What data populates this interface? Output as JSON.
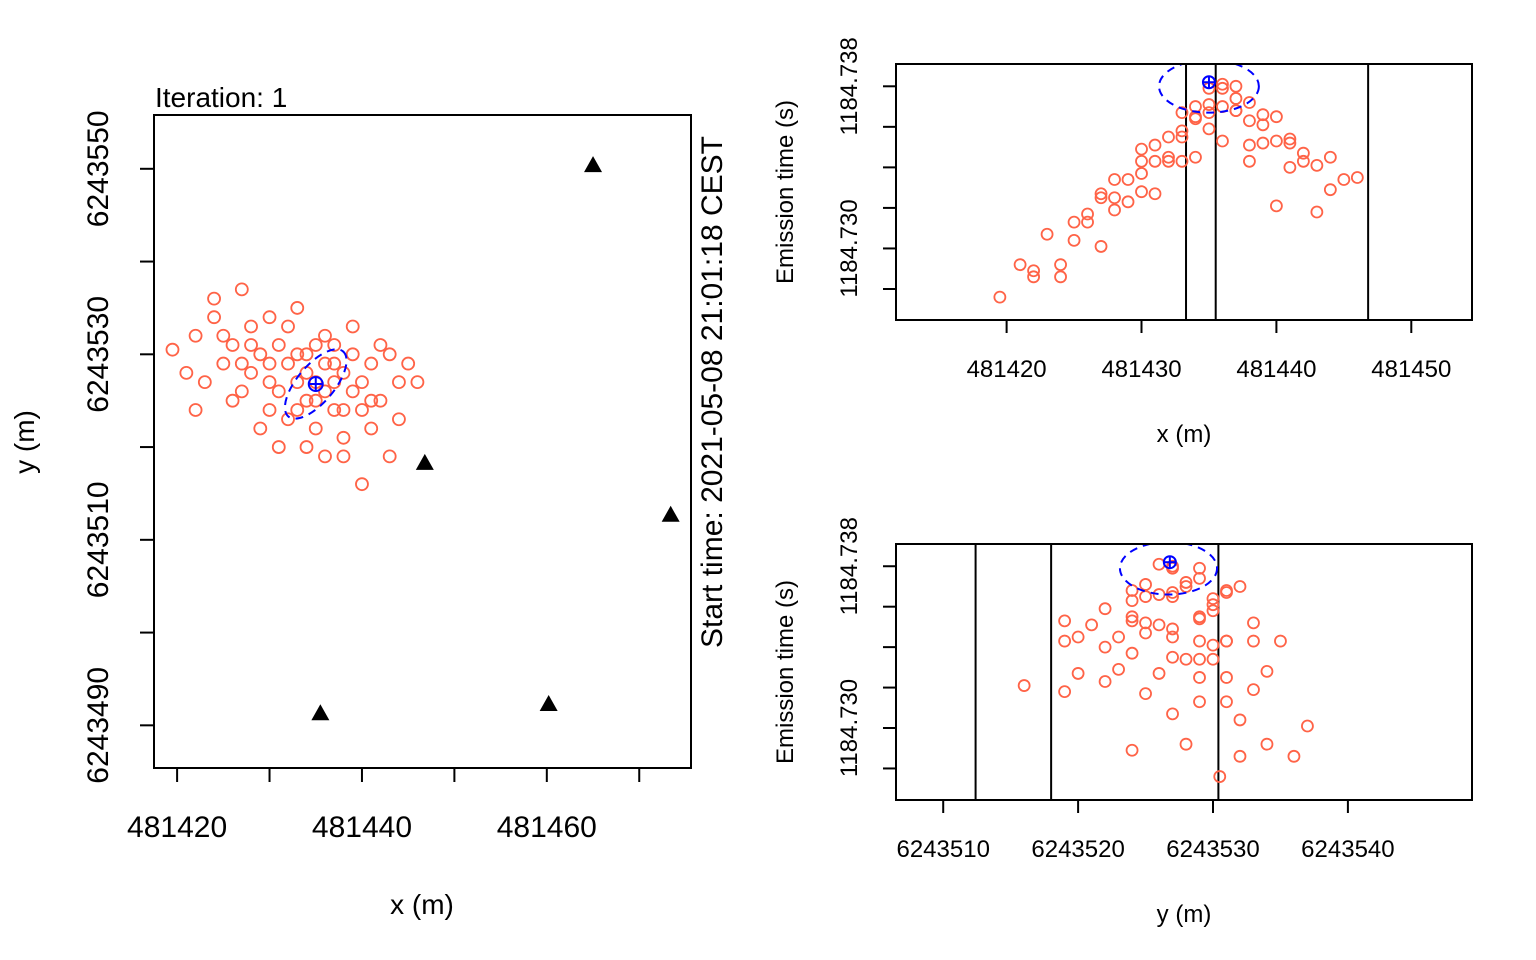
{
  "colors": {
    "points": "#FF6347",
    "estimate": "#0000FF",
    "receivers": "#000000",
    "lines": "#000000"
  },
  "points_xyt": [
    [
      481419.5,
      6243530.5,
      1184.7276
    ],
    [
      481422,
      6243532,
      1184.7286
    ],
    [
      481424,
      6243534,
      1184.7292
    ],
    [
      481423,
      6243527,
      1184.7307
    ],
    [
      481425,
      6243529,
      1184.7313
    ],
    [
      481426,
      6243531,
      1184.7313
    ],
    [
      481427,
      6243526,
      1184.7327
    ],
    [
      481428,
      6243533,
      1184.7319
    ],
    [
      481428,
      6243528,
      1184.7334
    ],
    [
      481429,
      6243530,
      1184.7334
    ],
    [
      481430,
      6243524,
      1184.7337
    ],
    [
      481430,
      6243527,
      1184.7349
    ],
    [
      481431,
      6243531,
      1184.7343
    ],
    [
      481431,
      6243526,
      1184.7351
    ],
    [
      481432,
      6243529,
      1184.7355
    ],
    [
      481432,
      6243523,
      1184.7345
    ],
    [
      481433,
      6243527,
      1184.7367
    ],
    [
      481433,
      6243530,
      1184.7358
    ],
    [
      481434,
      6243525,
      1184.7365
    ],
    [
      481434,
      6243528,
      1184.737
    ],
    [
      481435,
      6243527,
      1184.7379
    ],
    [
      481435,
      6243522,
      1184.7359
    ],
    [
      481436,
      6243526,
      1184.7381
    ],
    [
      481436,
      6243529,
      1184.7379
    ],
    [
      481437,
      6243527,
      1184.738
    ],
    [
      481437,
      6243524,
      1184.7368
    ],
    [
      481438,
      6243528,
      1184.7372
    ],
    [
      481438,
      6243521,
      1184.7351
    ],
    [
      481439,
      6243526,
      1184.7366
    ],
    [
      481439,
      6243530,
      1184.7361
    ],
    [
      481440,
      6243524,
      1184.7353
    ],
    [
      481440,
      6243527,
      1184.7365
    ],
    [
      481441,
      6243522,
      1184.734
    ],
    [
      481441,
      6243529,
      1184.7354
    ],
    [
      481442,
      6243525,
      1184.7347
    ],
    [
      481443,
      6243530,
      1184.7341
    ],
    [
      481444,
      6243527,
      1184.7345
    ],
    [
      481444,
      6243523,
      1184.7329
    ],
    [
      481446,
      6243527,
      1184.7335
    ],
    [
      481440,
      6243516,
      1184.7321
    ],
    [
      481438,
      6243519,
      1184.7343
    ],
    [
      481434,
      6243520,
      1184.7345
    ],
    [
      481433,
      6243535,
      1184.7343
    ],
    [
      481427,
      6243537,
      1184.7301
    ],
    [
      481424,
      6243536,
      1184.7286
    ],
    [
      481421,
      6243528,
      1184.7292
    ],
    [
      481426,
      6243525,
      1184.7317
    ],
    [
      481429,
      6243522,
      1184.7323
    ],
    [
      481431,
      6243520,
      1184.7327
    ],
    [
      481435,
      6243531,
      1184.7367
    ],
    [
      481436,
      6243532,
      1184.737
    ],
    [
      481432,
      6243533,
      1184.7343
    ],
    [
      481430,
      6243534,
      1184.7328
    ],
    [
      481428,
      6243531,
      1184.7325
    ],
    [
      481437,
      6243531,
      1184.7368
    ],
    [
      481439,
      6243533,
      1184.7352
    ],
    [
      481442,
      6243531,
      1184.7343
    ],
    [
      481445,
      6243529,
      1184.7334
    ],
    [
      481443,
      6243519,
      1184.7318
    ],
    [
      481436,
      6243519,
      1184.7353
    ],
    [
      481425,
      6243532,
      1184.7304
    ],
    [
      481433,
      6243524,
      1184.7355
    ],
    [
      481435,
      6243525,
      1184.7371
    ],
    [
      481434,
      6243530,
      1184.7364
    ],
    [
      481437,
      6243529,
      1184.7374
    ],
    [
      481430,
      6243529,
      1184.7343
    ],
    [
      481422,
      6243524,
      1184.7289
    ],
    [
      481427,
      6243529,
      1184.7325
    ],
    [
      481441,
      6243525,
      1184.7352
    ],
    [
      481438,
      6243524,
      1184.7363
    ]
  ],
  "receivers": [
    [
      481465.0,
      6243550.4
    ],
    [
      481446.8,
      6243518.3
    ],
    [
      481473.4,
      6243512.7
    ],
    [
      481435.5,
      6243491.3
    ],
    [
      481460.2,
      6243492.3
    ]
  ],
  "estimate": {
    "x": 481435.0,
    "y": 6243526.8,
    "t": 1184.7382
  },
  "chart_data": [
    {
      "type": "scatter",
      "title": "Iteration: 1",
      "xlabel": "x (m)",
      "ylabel": "y (m)",
      "side_label": "Start time: 2021-05-08 21:01:18 CEST",
      "xlim": [
        481417.5,
        481475.6
      ],
      "ylim": [
        6243485.4,
        6243555.8
      ],
      "xticks": [
        481420,
        481430,
        481440,
        481450,
        481460,
        481470
      ],
      "xtick_labels": [
        "481420",
        "",
        "481440",
        "",
        "481460",
        ""
      ],
      "yticks": [
        6243490,
        6243500,
        6243510,
        6243520,
        6243530,
        6243540,
        6243550
      ],
      "ytick_labels": [
        "6243490",
        "",
        "6243510",
        "",
        "6243530",
        "",
        "6243550"
      ],
      "ellipse": {
        "cx": 481435.0,
        "cy": 6243526.8,
        "rx": 4.6,
        "ry": 2.0,
        "angle_deg": 50
      },
      "grid": false
    },
    {
      "type": "scatter",
      "xlabel": "x (m)",
      "ylabel": "Emission time (s)",
      "xlim": [
        481411.8,
        481454.5
      ],
      "ylim": [
        1184.72647,
        1184.7391
      ],
      "xticks": [
        481420,
        481430,
        481440,
        481450
      ],
      "xtick_labels": [
        "481420",
        "481430",
        "481440",
        "481450"
      ],
      "yticks": [
        1184.728,
        1184.73,
        1184.732,
        1184.734,
        1184.736,
        1184.738
      ],
      "ytick_labels": [
        "",
        "1184.730",
        "",
        "",
        "",
        "1184.738"
      ],
      "vlines": [
        481433.3,
        481435.5,
        481446.8
      ],
      "ellipse": {
        "cx": 481435.0,
        "cy": 1184.738,
        "rx": 3.7,
        "ry": 0.0013,
        "angle_deg": 0
      },
      "grid": false
    },
    {
      "type": "scatter",
      "xlabel": "y (m)",
      "ylabel": "Emission time (s)",
      "xlim": [
        6243506.5,
        6243549.2
      ],
      "ylim": [
        1184.72644,
        1184.7391
      ],
      "xticks": [
        6243510,
        6243520,
        6243530,
        6243540
      ],
      "xtick_labels": [
        "6243510",
        "6243520",
        "6243530",
        "6243540"
      ],
      "yticks": [
        1184.728,
        1184.73,
        1184.732,
        1184.734,
        1184.736,
        1184.738
      ],
      "ytick_labels": [
        "",
        "1184.730",
        "",
        "",
        "",
        "1184.738"
      ],
      "vlines": [
        6243512.4,
        6243518.0,
        6243530.4
      ],
      "ellipse": {
        "cx": 6243526.7,
        "cy": 1184.7379,
        "rx": 3.6,
        "ry": 0.0013,
        "angle_deg": 0
      },
      "grid": false
    }
  ]
}
